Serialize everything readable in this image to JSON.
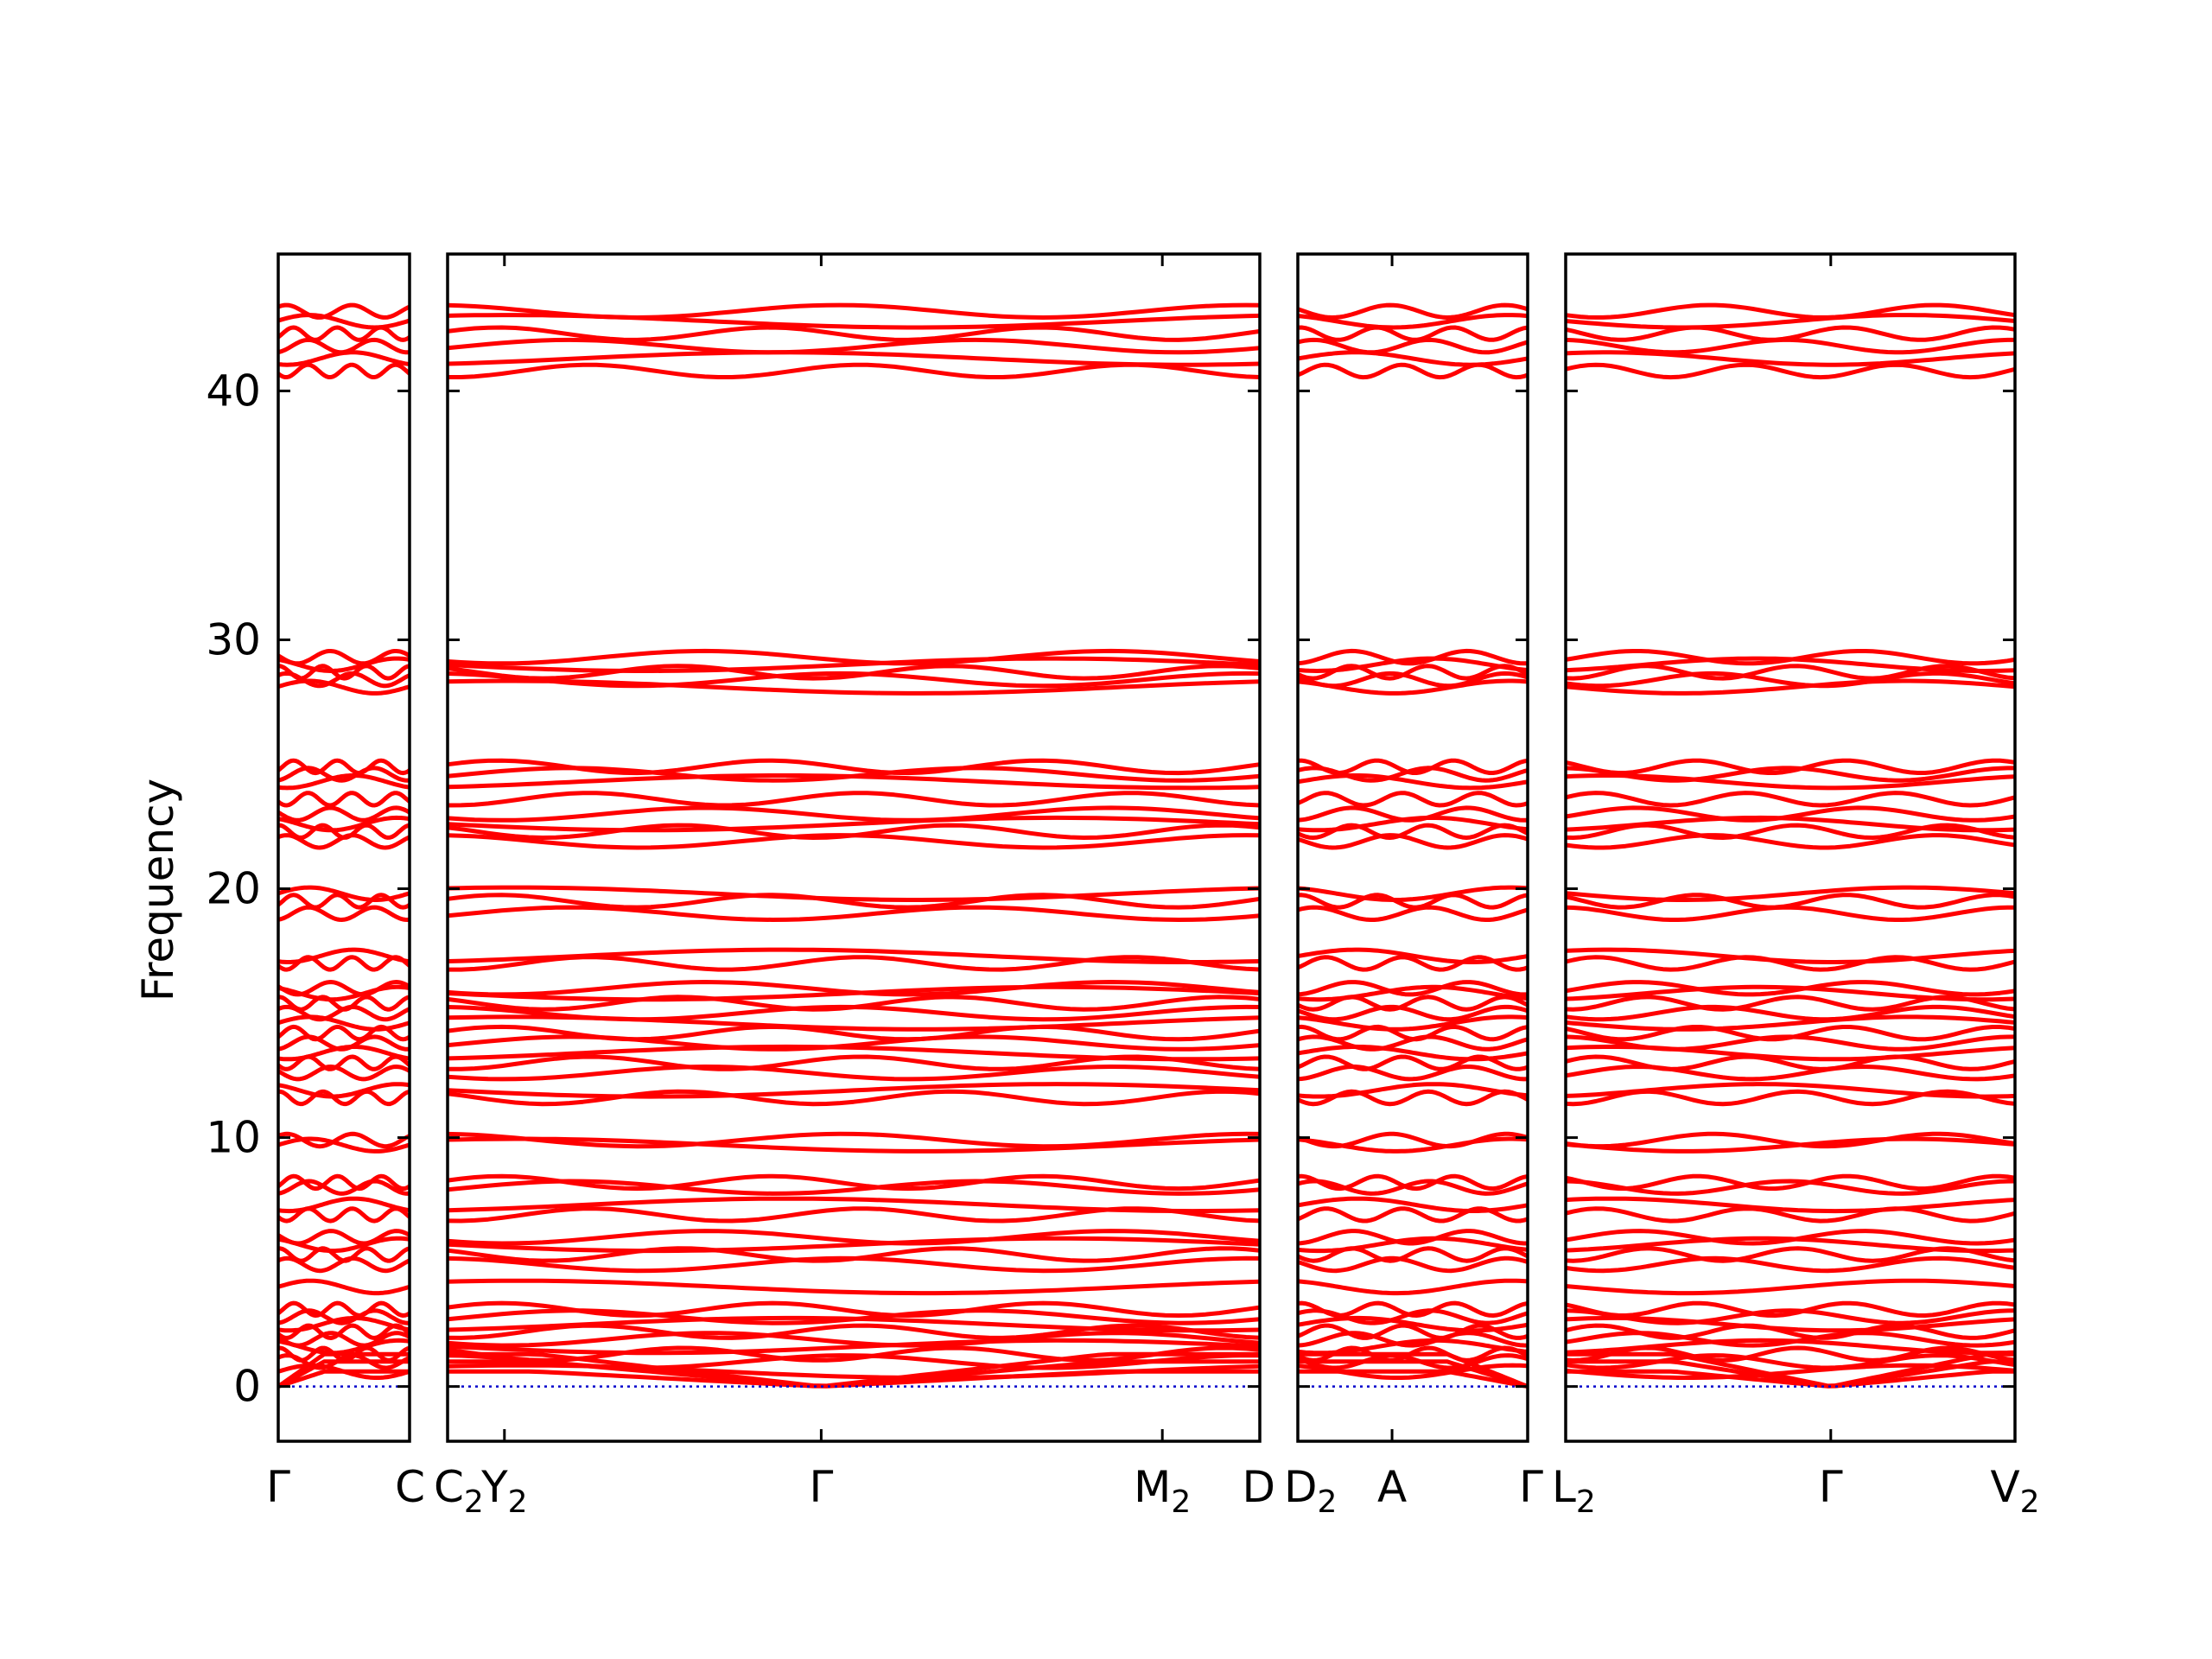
{
  "chart_data": {
    "type": "line",
    "ylabel": "Frequency",
    "ylim": [
      -2.2,
      45.5
    ],
    "yticks": [
      0,
      10,
      20,
      30,
      40
    ],
    "grid": false,
    "colors": {
      "bands": "#ff0000",
      "zero_line": "#0000cc",
      "frame": "#000000"
    },
    "segments": [
      {
        "path": "Γ–C",
        "x_ticks": [
          {
            "pos": 0,
            "label": "Γ"
          },
          {
            "pos": 1,
            "label": "C"
          }
        ]
      },
      {
        "path": "C2–Y2–Γ–M2–D",
        "x_ticks": [
          {
            "pos": 0,
            "label": "C",
            "sub": "2"
          },
          {
            "pos": 0.07,
            "label": "Y",
            "sub": "2"
          },
          {
            "pos": 0.46,
            "label": "Γ"
          },
          {
            "pos": 0.88,
            "label": "M",
            "sub": "2"
          },
          {
            "pos": 1,
            "label": "D"
          }
        ]
      },
      {
        "path": "D2–A–Γ",
        "x_ticks": [
          {
            "pos": 0,
            "label": "D",
            "sub": "2"
          },
          {
            "pos": 0.41,
            "label": "A"
          },
          {
            "pos": 1,
            "label": "Γ"
          }
        ]
      },
      {
        "path": "L2–Γ–V2",
        "x_ticks": [
          {
            "pos": 0,
            "label": "L",
            "sub": "2"
          },
          {
            "pos": 0.59,
            "label": "Γ"
          },
          {
            "pos": 1,
            "label": "V",
            "sub": "2"
          }
        ]
      }
    ],
    "band_levels": [
      0.6,
      1.0,
      1.3,
      1.6,
      1.9,
      2.2,
      2.5,
      2.8,
      3.1,
      4.0,
      4.9,
      5.3,
      5.7,
      6.0,
      6.9,
      7.3,
      8.0,
      8.2,
      9.7,
      9.9,
      11.6,
      11.9,
      12.6,
      13.0,
      13.4,
      13.8,
      14.2,
      14.6,
      15.0,
      15.4,
      15.8,
      16.0,
      17.0,
      17.3,
      19.0,
      19.5,
      19.8,
      21.9,
      22.3,
      22.6,
      23.0,
      23.6,
      24.3,
      24.6,
      24.9,
      28.1,
      28.4,
      28.7,
      29.0,
      29.3,
      40.8,
      41.3,
      41.8,
      42.3,
      42.8,
      43.2
    ],
    "acoustic_modes": 3,
    "acoustic_top": [
      0.6,
      1.0,
      1.3
    ]
  }
}
